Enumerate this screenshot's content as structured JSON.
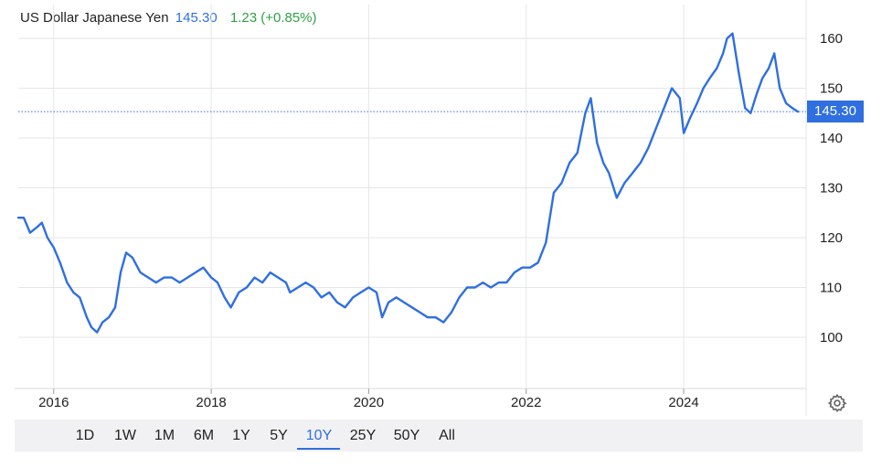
{
  "header": {
    "instrument": "US Dollar Japanese Yen",
    "price": "145.30",
    "change": "1.23 (+0.85%)"
  },
  "price_tag": "145.30",
  "colors": {
    "line": "#2f6fe0",
    "change": "#2ea043",
    "grid": "#e6e6e6",
    "active": "#2f6fe0"
  },
  "range_buttons": [
    "1D",
    "1W",
    "1M",
    "6M",
    "1Y",
    "5Y",
    "10Y",
    "25Y",
    "50Y",
    "All"
  ],
  "active_range": "10Y",
  "icons": {
    "settings": "gear-icon"
  },
  "chart_data": {
    "type": "line",
    "title": "US Dollar Japanese Yen",
    "ylim": [
      90,
      165
    ],
    "xlim": [
      2015.55,
      2025.45
    ],
    "y_ticks": [
      100,
      110,
      120,
      130,
      140,
      150,
      160
    ],
    "x_ticks": [
      2016,
      2018,
      2020,
      2022,
      2024
    ],
    "x_tick_labels": [
      "2016",
      "2018",
      "2020",
      "2022",
      "2024"
    ],
    "current_value": 145.3,
    "grid": true,
    "series": [
      {
        "x": [
          2015.55,
          2015.62,
          2015.7,
          2015.78,
          2015.85,
          2015.92,
          2016.0,
          2016.08,
          2016.17,
          2016.25,
          2016.33,
          2016.42,
          2016.48,
          2016.55,
          2016.62,
          2016.7,
          2016.78,
          2016.85,
          2016.92,
          2017.0,
          2017.1,
          2017.2,
          2017.3,
          2017.4,
          2017.5,
          2017.6,
          2017.7,
          2017.8,
          2017.9,
          2018.0,
          2018.08,
          2018.17,
          2018.25,
          2018.35,
          2018.45,
          2018.55,
          2018.65,
          2018.75,
          2018.85,
          2018.95,
          2019.0,
          2019.1,
          2019.2,
          2019.3,
          2019.4,
          2019.5,
          2019.6,
          2019.7,
          2019.8,
          2019.9,
          2020.0,
          2020.1,
          2020.17,
          2020.25,
          2020.35,
          2020.45,
          2020.55,
          2020.65,
          2020.75,
          2020.85,
          2020.95,
          2021.05,
          2021.15,
          2021.25,
          2021.35,
          2021.45,
          2021.55,
          2021.65,
          2021.75,
          2021.85,
          2021.95,
          2022.05,
          2022.15,
          2022.25,
          2022.35,
          2022.45,
          2022.55,
          2022.65,
          2022.75,
          2022.82,
          2022.9,
          2022.98,
          2023.05,
          2023.15,
          2023.25,
          2023.35,
          2023.45,
          2023.55,
          2023.65,
          2023.75,
          2023.85,
          2023.95,
          2024.0,
          2024.08,
          2024.17,
          2024.25,
          2024.33,
          2024.42,
          2024.5,
          2024.55,
          2024.62,
          2024.7,
          2024.78,
          2024.85,
          2024.93,
          2025.0,
          2025.08,
          2025.15,
          2025.22,
          2025.3,
          2025.38,
          2025.45
        ],
        "values": [
          124,
          124,
          121,
          122,
          123,
          120,
          118,
          115,
          111,
          109,
          108,
          104,
          102,
          101,
          103,
          104,
          106,
          113,
          117,
          116,
          113,
          112,
          111,
          112,
          112,
          111,
          112,
          113,
          114,
          112,
          111,
          108,
          106,
          109,
          110,
          112,
          111,
          113,
          112,
          111,
          109,
          110,
          111,
          110,
          108,
          109,
          107,
          106,
          108,
          109,
          110,
          109,
          104,
          107,
          108,
          107,
          106,
          105,
          104,
          104,
          103,
          105,
          108,
          110,
          110,
          111,
          110,
          111,
          111,
          113,
          114,
          114,
          115,
          119,
          129,
          131,
          135,
          137,
          145,
          148,
          139,
          135,
          133,
          128,
          131,
          133,
          135,
          138,
          142,
          146,
          150,
          148,
          141,
          144,
          147,
          150,
          152,
          154,
          157,
          160,
          161,
          153,
          146,
          145,
          149,
          152,
          154,
          157,
          150,
          147,
          146,
          145.3
        ]
      }
    ]
  }
}
